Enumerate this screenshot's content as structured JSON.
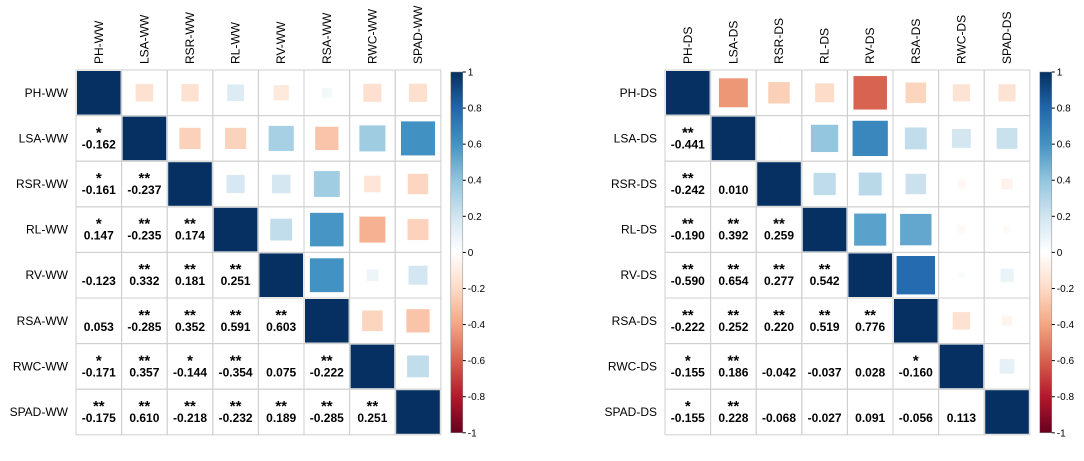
{
  "chart_data": [
    {
      "type": "corrplot",
      "variables": [
        "PH-WW",
        "LSA-WW",
        "RSR-WW",
        "RL-WW",
        "RV-WW",
        "RSA-WW",
        "RWC-WW",
        "SPAD-WW"
      ],
      "values": [
        [
          1
        ],
        [
          -0.162,
          1
        ],
        [
          -0.161,
          -0.237,
          1
        ],
        [
          0.147,
          -0.235,
          0.174,
          1
        ],
        [
          -0.123,
          0.332,
          0.181,
          0.251,
          1
        ],
        [
          0.053,
          -0.285,
          0.352,
          0.591,
          0.603,
          1
        ],
        [
          -0.171,
          0.357,
          -0.144,
          -0.354,
          0.075,
          -0.222,
          1
        ],
        [
          -0.175,
          0.61,
          -0.218,
          -0.232,
          0.189,
          -0.285,
          0.251,
          1
        ]
      ],
      "value_labels": [
        [],
        [
          "-0.162"
        ],
        [
          "-0.161",
          "-0.237"
        ],
        [
          "0.147",
          "-0.235",
          "0.174"
        ],
        [
          "-0.123",
          "0.332",
          "0.181",
          "0.251"
        ],
        [
          "0.053",
          "-0.285",
          "0.352",
          "0.591",
          "0.603"
        ],
        [
          "-0.171",
          "0.357",
          "-0.144",
          "-0.354",
          "0.075",
          "-0.222"
        ],
        [
          "-0.175",
          "0.610",
          "-0.218",
          "-0.232",
          "0.189",
          "-0.285",
          "0.251"
        ]
      ],
      "stars": [
        [],
        [
          "*"
        ],
        [
          "*",
          "**"
        ],
        [
          "*",
          "**",
          "**"
        ],
        [
          null,
          "**",
          "**",
          "**"
        ],
        [
          null,
          "**",
          "**",
          "**",
          "**"
        ],
        [
          "*",
          "**",
          "*",
          "**",
          null,
          "**"
        ],
        [
          "**",
          "**",
          "**",
          "**",
          "**",
          "**",
          "**"
        ]
      ],
      "clim": [
        -1,
        1
      ],
      "cticks": [
        -1,
        -0.8,
        -0.6,
        -0.4,
        -0.2,
        0,
        0.2,
        0.4,
        0.6,
        0.8,
        1
      ],
      "colors": [
        "#67001F",
        "#B2182B",
        "#D6604D",
        "#F4A582",
        "#FDDBC7",
        "#FFFFFF",
        "#D1E5F0",
        "#92C5DE",
        "#4393C3",
        "#2166AC",
        "#053061"
      ]
    },
    {
      "type": "corrplot",
      "variables": [
        "PH-DS",
        "LSA-DS",
        "RSR-DS",
        "RL-DS",
        "RV-DS",
        "RSA-DS",
        "RWC-DS",
        "SPAD-DS"
      ],
      "values": [
        [
          1
        ],
        [
          -0.441,
          1
        ],
        [
          -0.242,
          0.01,
          1
        ],
        [
          -0.19,
          0.392,
          0.259,
          1
        ],
        [
          -0.59,
          0.654,
          0.277,
          0.542,
          1
        ],
        [
          -0.222,
          0.252,
          0.22,
          0.519,
          0.776,
          1
        ],
        [
          -0.155,
          0.186,
          -0.042,
          -0.037,
          0.028,
          -0.16,
          1
        ],
        [
          -0.155,
          0.228,
          -0.068,
          -0.027,
          0.091,
          -0.056,
          0.113,
          1
        ]
      ],
      "value_labels": [
        [],
        [
          "-0.441"
        ],
        [
          "-0.242",
          "0.010"
        ],
        [
          "-0.190",
          "0.392",
          "0.259"
        ],
        [
          "-0.590",
          "0.654",
          "0.277",
          "0.542"
        ],
        [
          "-0.222",
          "0.252",
          "0.220",
          "0.519",
          "0.776"
        ],
        [
          "-0.155",
          "0.186",
          "-0.042",
          "-0.037",
          "0.028",
          "-0.160"
        ],
        [
          "-0.155",
          "0.228",
          "-0.068",
          "-0.027",
          "0.091",
          "-0.056",
          "0.113"
        ]
      ],
      "stars": [
        [],
        [
          "**"
        ],
        [
          "**",
          null
        ],
        [
          "**",
          "**",
          "**"
        ],
        [
          "**",
          "**",
          "**",
          "**"
        ],
        [
          "**",
          "**",
          "**",
          "**",
          "**"
        ],
        [
          "*",
          "**",
          null,
          null,
          null,
          "*"
        ],
        [
          "*",
          "**",
          null,
          null,
          null,
          null,
          null
        ]
      ],
      "clim": [
        -1,
        1
      ],
      "cticks": [
        -1,
        -0.8,
        -0.6,
        -0.4,
        -0.2,
        0,
        0.2,
        0.4,
        0.6,
        0.8,
        1
      ],
      "colors": [
        "#67001F",
        "#B2182B",
        "#D6604D",
        "#F4A582",
        "#FDDBC7",
        "#FFFFFF",
        "#D1E5F0",
        "#92C5DE",
        "#4393C3",
        "#2166AC",
        "#053061"
      ]
    }
  ]
}
